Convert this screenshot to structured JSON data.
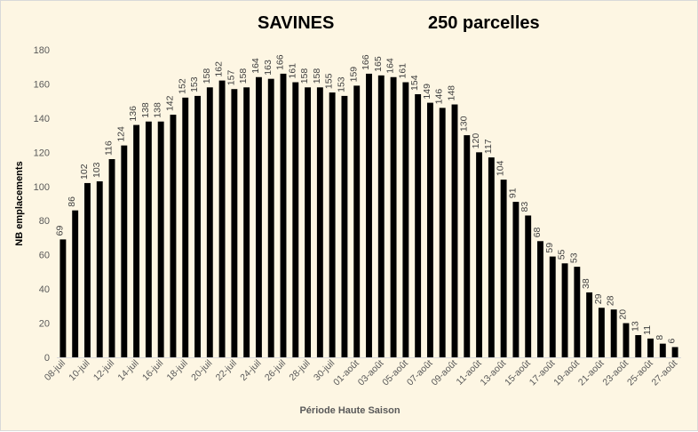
{
  "chart_data": {
    "type": "bar",
    "title": "SAVINES",
    "subtitle": "250 parcelles",
    "xlabel": "Période Haute Saison",
    "ylabel": "NB emplacements",
    "ylim": [
      0,
      180
    ],
    "yticks": [
      0,
      20,
      40,
      60,
      80,
      100,
      120,
      140,
      160,
      180
    ],
    "grid": false,
    "bar_color": "#000000",
    "background_color": "#fdf6e3",
    "categories": [
      "08-juil",
      "09-juil",
      "10-juil",
      "11-juil",
      "12-juil",
      "13-juil",
      "14-juil",
      "15-juil",
      "16-juil",
      "17-juil",
      "18-juil",
      "19-juil",
      "20-juil",
      "21-juil",
      "22-juil",
      "23-juil",
      "24-juil",
      "25-juil",
      "26-juil",
      "27-juil",
      "28-juil",
      "29-juil",
      "30-juil",
      "31-juil",
      "01-août",
      "02-août",
      "03-août",
      "04-août",
      "05-août",
      "06-août",
      "07-août",
      "08-août",
      "09-août",
      "10-août",
      "11-août",
      "12-août",
      "13-août",
      "14-août",
      "15-août",
      "16-août",
      "17-août",
      "18-août",
      "19-août",
      "20-août",
      "21-août",
      "22-août",
      "23-août",
      "24-août",
      "25-août",
      "26-août",
      "27-août"
    ],
    "values": [
      69,
      86,
      102,
      103,
      116,
      124,
      136,
      138,
      138,
      142,
      152,
      153,
      158,
      162,
      157,
      158,
      164,
      163,
      166,
      161,
      158,
      158,
      155,
      153,
      159,
      166,
      165,
      164,
      161,
      154,
      149,
      146,
      148,
      130,
      120,
      117,
      104,
      91,
      83,
      68,
      59,
      55,
      53,
      38,
      29,
      28,
      20,
      13,
      11,
      8,
      6
    ],
    "data_labels": true,
    "xtick_every": 2
  }
}
